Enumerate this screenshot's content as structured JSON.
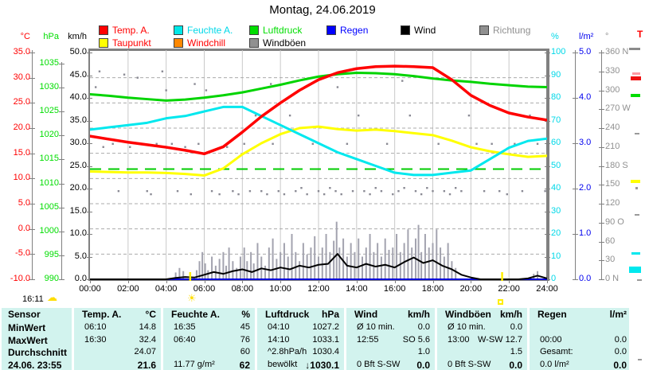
{
  "title": "Montag, 24.06.2019",
  "right_edge_label": "T",
  "footer": {
    "generated_time": "16:11"
  },
  "legend": {
    "items": [
      {
        "label": "Temp. A.",
        "box": "#ff0000",
        "text": "#ff0000"
      },
      {
        "label": "Feuchte A.",
        "box": "#00e8e8",
        "text": "#00d8e8"
      },
      {
        "label": "Luftdruck",
        "box": "#00dd00",
        "text": "#00dd00"
      },
      {
        "label": "Regen",
        "box": "#0000ff",
        "text": "#0000ff"
      },
      {
        "label": "Wind",
        "box": "#000000",
        "text": "#000000"
      },
      {
        "label": "Richtung",
        "box": "#909090",
        "text": "#909090"
      },
      {
        "label": "Taupunkt",
        "box": "#ffff00",
        "text": "#ff0000"
      },
      {
        "label": "Windchill",
        "box": "#ff8800",
        "text": "#ff0000"
      },
      {
        "label": "Windböen",
        "box": "#909090",
        "text": "#000000"
      }
    ]
  },
  "axes": {
    "temp": {
      "unit": "°C",
      "color": "#ff0000",
      "min": -10,
      "max": 35,
      "ticks": [
        "35.0",
        "30.0",
        "25.0",
        "20.0",
        "15.0",
        "10.0",
        "5.0",
        "0.0",
        "-5.0",
        "-10.0"
      ]
    },
    "pressure": {
      "unit": "hPa",
      "color": "#00dd00",
      "min": 990,
      "max": 1035,
      "ticks": [
        "1035",
        "1030",
        "1025",
        "1020",
        "1015",
        "1010",
        "1005",
        "1000",
        "995",
        "990"
      ]
    },
    "wind": {
      "unit": "km/h",
      "color": "#000000",
      "min": 0,
      "max": 50,
      "ticks": [
        "50.0",
        "45.0",
        "40.0",
        "35.0",
        "30.0",
        "25.0",
        "20.0",
        "15.0",
        "10.0",
        "5.0",
        "0.0"
      ]
    },
    "humidity": {
      "unit": "%",
      "color": "#00d8e8",
      "min": 0,
      "max": 100,
      "ticks": [
        "100",
        "90",
        "80",
        "70",
        "60",
        "50",
        "40",
        "30",
        "20",
        "10",
        "0"
      ]
    },
    "rain": {
      "unit": "l/m²",
      "color": "#0000ee",
      "min": 0,
      "max": 5,
      "ticks": [
        "5.0",
        "4.0",
        "3.0",
        "2.0",
        "1.0",
        "0.0"
      ]
    },
    "direction": {
      "unit": "°",
      "color": "#909090",
      "min": 0,
      "max": 360,
      "ticks": [
        "360 N",
        "330",
        "300",
        "270 W",
        "240",
        "210",
        "180 S",
        "150",
        "120",
        "90 O",
        "60",
        "30",
        "0 N"
      ]
    }
  },
  "x_axis": {
    "labels": [
      "00:00",
      "02:00",
      "04:00",
      "06:00",
      "08:00",
      "10:00",
      "12:00",
      "14:00",
      "16:00",
      "18:00",
      "20:00",
      "22:00",
      "24:00"
    ]
  },
  "chart_data": {
    "type": "line",
    "title": "Montag, 24.06.2019",
    "x_unit": "hour",
    "x_hours": [
      0,
      1,
      2,
      3,
      4,
      5,
      6,
      7,
      8,
      9,
      10,
      11,
      12,
      13,
      14,
      15,
      16,
      17,
      18,
      19,
      20,
      21,
      22,
      23,
      24
    ],
    "series": [
      {
        "name": "Temp. A.",
        "unit": "°C",
        "color": "#ff0000",
        "axis_range": [
          -10,
          35
        ],
        "values": [
          18.4,
          17.8,
          17.2,
          16.7,
          16.2,
          15.6,
          14.9,
          16.3,
          19.2,
          22.3,
          25.0,
          27.5,
          29.6,
          31.0,
          31.8,
          32.2,
          32.3,
          32.2,
          32.0,
          29.6,
          26.5,
          24.5,
          23.0,
          22.2,
          21.6
        ]
      },
      {
        "name": "Taupunkt",
        "unit": "°C",
        "color": "#ffff00",
        "axis_range": [
          -10,
          35
        ],
        "values": [
          11.4,
          11.3,
          11.2,
          11.2,
          11.1,
          10.9,
          10.6,
          12.0,
          14.8,
          17.0,
          18.8,
          20.0,
          20.3,
          19.8,
          19.5,
          19.7,
          19.4,
          19.0,
          18.6,
          17.5,
          16.2,
          15.4,
          14.8,
          14.3,
          14.5
        ]
      },
      {
        "name": "Feuchte A.",
        "unit": "%",
        "color": "#00e8ee",
        "axis_range": [
          0,
          100
        ],
        "values": [
          66,
          67,
          68,
          69,
          71,
          72,
          74,
          76,
          76,
          72,
          68,
          64,
          60,
          56,
          53,
          50,
          47,
          46,
          46,
          47,
          48,
          53,
          58,
          61,
          62
        ]
      },
      {
        "name": "Luftdruck",
        "unit": "hPa",
        "color": "#00d400",
        "axis_range": [
          990,
          1035
        ],
        "values": [
          1028.6,
          1028.3,
          1027.9,
          1027.6,
          1027.3,
          1027.5,
          1027.9,
          1028.4,
          1029.0,
          1029.8,
          1030.6,
          1031.5,
          1032.3,
          1032.8,
          1033.1,
          1033.0,
          1032.8,
          1032.4,
          1031.9,
          1031.5,
          1031.2,
          1030.8,
          1030.5,
          1030.2,
          1030.1
        ]
      }
    ],
    "wind_series": {
      "name": "Wind",
      "unit": "km/h",
      "color": "#000000",
      "step_hours": 0.5,
      "values": [
        0,
        0,
        0,
        0,
        0,
        0,
        0,
        0,
        0,
        0.3,
        0.5,
        0.4,
        1.0,
        1.6,
        1.2,
        1.8,
        2.2,
        1.6,
        2.4,
        2.0,
        2.6,
        2.2,
        3.0,
        2.6,
        3.2,
        3.4,
        5.6,
        3.0,
        2.6,
        3.4,
        2.8,
        3.2,
        2.6,
        3.8,
        4.8,
        3.6,
        4.2,
        3.0,
        2.2,
        1.0,
        0.4,
        0,
        0,
        0,
        0,
        0,
        0.2,
        0.8,
        0.2
      ]
    },
    "gust_bars": {
      "name": "Windböen",
      "unit": "km/h",
      "color": "#a3a3af",
      "points": [
        [
          4.5,
          1.5
        ],
        [
          4.7,
          2.5
        ],
        [
          4.9,
          1.8
        ],
        [
          5.6,
          2
        ],
        [
          5.75,
          4
        ],
        [
          5.9,
          6
        ],
        [
          6.05,
          3.5
        ],
        [
          6.2,
          2
        ],
        [
          6.4,
          5
        ],
        [
          6.6,
          3
        ],
        [
          6.8,
          4.5
        ],
        [
          7.0,
          6
        ],
        [
          7.15,
          3
        ],
        [
          7.3,
          7
        ],
        [
          7.5,
          4
        ],
        [
          7.7,
          2.5
        ],
        [
          7.9,
          5
        ],
        [
          8.1,
          7
        ],
        [
          8.25,
          4
        ],
        [
          8.45,
          6
        ],
        [
          8.6,
          3.5
        ],
        [
          8.8,
          8
        ],
        [
          9.0,
          5
        ],
        [
          9.2,
          3
        ],
        [
          9.4,
          7
        ],
        [
          9.6,
          9
        ],
        [
          9.8,
          4.5
        ],
        [
          10.0,
          6
        ],
        [
          10.2,
          8
        ],
        [
          10.4,
          5
        ],
        [
          10.6,
          10
        ],
        [
          10.8,
          6
        ],
        [
          11.0,
          4
        ],
        [
          11.2,
          8
        ],
        [
          11.4,
          5.5
        ],
        [
          11.6,
          7
        ],
        [
          11.8,
          9.5
        ],
        [
          12.0,
          5
        ],
        [
          12.2,
          7
        ],
        [
          12.4,
          10
        ],
        [
          12.6,
          6
        ],
        [
          12.8,
          8.5
        ],
        [
          12.95,
          12.7
        ],
        [
          13.1,
          7
        ],
        [
          13.3,
          9
        ],
        [
          13.5,
          5
        ],
        [
          13.7,
          8
        ],
        [
          13.9,
          6
        ],
        [
          14.1,
          9
        ],
        [
          14.3,
          5
        ],
        [
          14.5,
          7
        ],
        [
          14.7,
          10
        ],
        [
          14.9,
          6
        ],
        [
          15.1,
          8
        ],
        [
          15.3,
          5
        ],
        [
          15.5,
          9
        ],
        [
          15.7,
          6.5
        ],
        [
          15.9,
          7
        ],
        [
          16.1,
          10
        ],
        [
          16.3,
          6
        ],
        [
          16.5,
          8
        ],
        [
          16.7,
          11
        ],
        [
          16.9,
          7
        ],
        [
          17.1,
          9
        ],
        [
          17.25,
          12
        ],
        [
          17.4,
          6
        ],
        [
          17.6,
          10
        ],
        [
          17.8,
          7
        ],
        [
          18.0,
          8
        ],
        [
          18.2,
          11
        ],
        [
          18.4,
          7
        ],
        [
          18.6,
          5
        ],
        [
          18.8,
          8
        ],
        [
          19.0,
          4
        ],
        [
          19.2,
          2.5
        ],
        [
          23.3,
          1.2
        ],
        [
          23.5,
          1.8
        ]
      ]
    },
    "direction_scatter": {
      "name": "Richtung",
      "unit": "°",
      "color": "#8a8a94",
      "points": [
        [
          0.3,
          305
        ],
        [
          0.5,
          330
        ],
        [
          0.7,
          210
        ],
        [
          1.2,
          215
        ],
        [
          1.5,
          140
        ],
        [
          1.8,
          325
        ],
        [
          2.1,
          210
        ],
        [
          2.5,
          320
        ],
        [
          2.6,
          215
        ],
        [
          3.0,
          140
        ],
        [
          3.2,
          135
        ],
        [
          3.5,
          215
        ],
        [
          3.8,
          330
        ],
        [
          4.0,
          300
        ],
        [
          4.3,
          215
        ],
        [
          4.6,
          140
        ],
        [
          5.0,
          210
        ],
        [
          5.3,
          135
        ],
        [
          5.5,
          310
        ],
        [
          5.7,
          215
        ],
        [
          6.1,
          300
        ],
        [
          6.4,
          140
        ],
        [
          6.8,
          135
        ],
        [
          7.2,
          210
        ],
        [
          7.5,
          140
        ],
        [
          7.8,
          135
        ],
        [
          8.1,
          215
        ],
        [
          8.4,
          140
        ],
        [
          8.7,
          260
        ],
        [
          9.0,
          140
        ],
        [
          9.3,
          135
        ],
        [
          9.5,
          310
        ],
        [
          9.6,
          215
        ],
        [
          9.9,
          140
        ],
        [
          10.2,
          135
        ],
        [
          10.5,
          260
        ],
        [
          10.8,
          140
        ],
        [
          11.1,
          145
        ],
        [
          11.4,
          135
        ],
        [
          11.7,
          215
        ],
        [
          12.0,
          140
        ],
        [
          12.3,
          135
        ],
        [
          12.6,
          145
        ],
        [
          12.9,
          140
        ],
        [
          13.0,
          305
        ],
        [
          13.2,
          135
        ],
        [
          13.5,
          215
        ],
        [
          13.8,
          140
        ],
        [
          14.1,
          260
        ],
        [
          14.4,
          140
        ],
        [
          14.7,
          135
        ],
        [
          15.0,
          145
        ],
        [
          15.3,
          140
        ],
        [
          15.6,
          215
        ],
        [
          15.9,
          135
        ],
        [
          16.2,
          140
        ],
        [
          16.4,
          315
        ],
        [
          16.5,
          145
        ],
        [
          16.8,
          260
        ],
        [
          17.1,
          140
        ],
        [
          17.4,
          135
        ],
        [
          17.7,
          145
        ],
        [
          18.0,
          140
        ],
        [
          18.3,
          215
        ],
        [
          18.6,
          140
        ],
        [
          18.9,
          135
        ],
        [
          19.2,
          145
        ],
        [
          19.5,
          140
        ],
        [
          19.9,
          260
        ],
        [
          20.3,
          215
        ],
        [
          20.7,
          140
        ],
        [
          21.1,
          215
        ],
        [
          21.5,
          140
        ],
        [
          21.9,
          135
        ],
        [
          22.3,
          215
        ],
        [
          22.7,
          140
        ],
        [
          23.1,
          260
        ],
        [
          23.5,
          215
        ],
        [
          23.9,
          140
        ]
      ]
    },
    "rain_series": {
      "name": "Regen",
      "unit": "l/m²",
      "color": "#0000dd",
      "constant_value": 0
    },
    "pressure_reference_line": {
      "value_hpa": 1013,
      "color": "#00cc00",
      "style": "dashed"
    },
    "sun_markers": {
      "sunrise_hour": 5.25,
      "sunset_hour": 21.63
    }
  },
  "table": {
    "row_labels": [
      "Sensor",
      "MinWert",
      "MaxWert",
      "Durchschnitt",
      "24.06. 23:55"
    ],
    "columns": [
      {
        "name": "Temp. A.",
        "unit": "°C",
        "rows": [
          [
            "06:10",
            "14.8"
          ],
          [
            "16:30",
            "32.4"
          ],
          [
            "",
            "24.07"
          ],
          [
            "",
            "21.6"
          ]
        ]
      },
      {
        "name": "Feuchte A.",
        "unit": "%",
        "rows": [
          [
            "16:35",
            "45"
          ],
          [
            "06:40",
            "76"
          ],
          [
            "",
            "60"
          ],
          [
            "11.77 g/m²",
            "62"
          ]
        ]
      },
      {
        "name": "Luftdruck",
        "unit": "hPa",
        "rows": [
          [
            "04:10",
            "1027.2"
          ],
          [
            "14:10",
            "1033.1"
          ],
          [
            "^2.8hPa/h",
            "1030.4"
          ],
          [
            "bewölkt",
            "↓1030.1"
          ]
        ]
      },
      {
        "name": "Wind",
        "unit": "km/h",
        "rows": [
          [
            "Ø 10 min.",
            "0.0"
          ],
          [
            "12:55",
            "SO 5.6"
          ],
          [
            "",
            "1.0"
          ],
          [
            "0 Bft S-SW",
            "0.0"
          ]
        ]
      },
      {
        "name": "Windböen",
        "unit": "km/h",
        "rows": [
          [
            "Ø 10 min.",
            "0.0"
          ],
          [
            "13:00",
            "W-SW 12.7"
          ],
          [
            "",
            "1.5"
          ],
          [
            "0 Bft S-SW",
            "0.0"
          ]
        ]
      },
      {
        "name": "Regen",
        "unit": "l/m²",
        "rows": [
          [
            "",
            ""
          ],
          [
            "00:00",
            "0.0"
          ],
          [
            "Gesamt:",
            "0.0"
          ],
          [
            "0.0 l/m²",
            "0.0"
          ]
        ]
      }
    ]
  }
}
